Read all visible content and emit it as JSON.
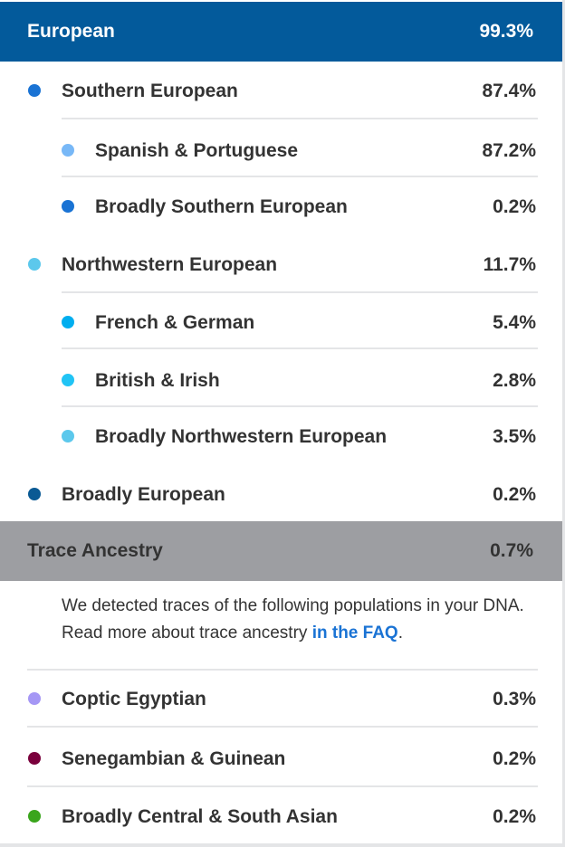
{
  "european": {
    "label": "European",
    "percent": "99.3%",
    "color": "#035a9b"
  },
  "rows": [
    {
      "label": "Southern European",
      "percent": "87.4%",
      "color": "#1a73d4",
      "level": "top"
    },
    {
      "label": "Spanish & Portuguese",
      "percent": "87.2%",
      "color": "#78b8f7",
      "level": "sub"
    },
    {
      "label": "Broadly Southern European",
      "percent": "0.2%",
      "color": "#1a73d4",
      "level": "sub"
    },
    {
      "label": "Northwestern European",
      "percent": "11.7%",
      "color": "#5cc8ec",
      "level": "top"
    },
    {
      "label": "French & German",
      "percent": "5.4%",
      "color": "#00aeef",
      "level": "sub"
    },
    {
      "label": "British & Irish",
      "percent": "2.8%",
      "color": "#21c4f5",
      "level": "sub"
    },
    {
      "label": "Broadly Northwestern European",
      "percent": "3.5%",
      "color": "#5cc8ec",
      "level": "sub"
    },
    {
      "label": "Broadly European",
      "percent": "0.2%",
      "color": "#0a5a94",
      "level": "top"
    }
  ],
  "trace": {
    "label": "Trace Ancestry",
    "percent": "0.7%",
    "note": "We detected traces of the following populations in your DNA. Read more about trace ancestry ",
    "link": "in the FAQ",
    "note_end": ".",
    "rows": [
      {
        "label": "Coptic Egyptian",
        "percent": "0.3%",
        "color": "#a597f5"
      },
      {
        "label": "Senegambian & Guinean",
        "percent": "0.2%",
        "color": "#7a003c"
      },
      {
        "label": "Broadly Central & South Asian",
        "percent": "0.2%",
        "color": "#3aa51c"
      }
    ]
  }
}
